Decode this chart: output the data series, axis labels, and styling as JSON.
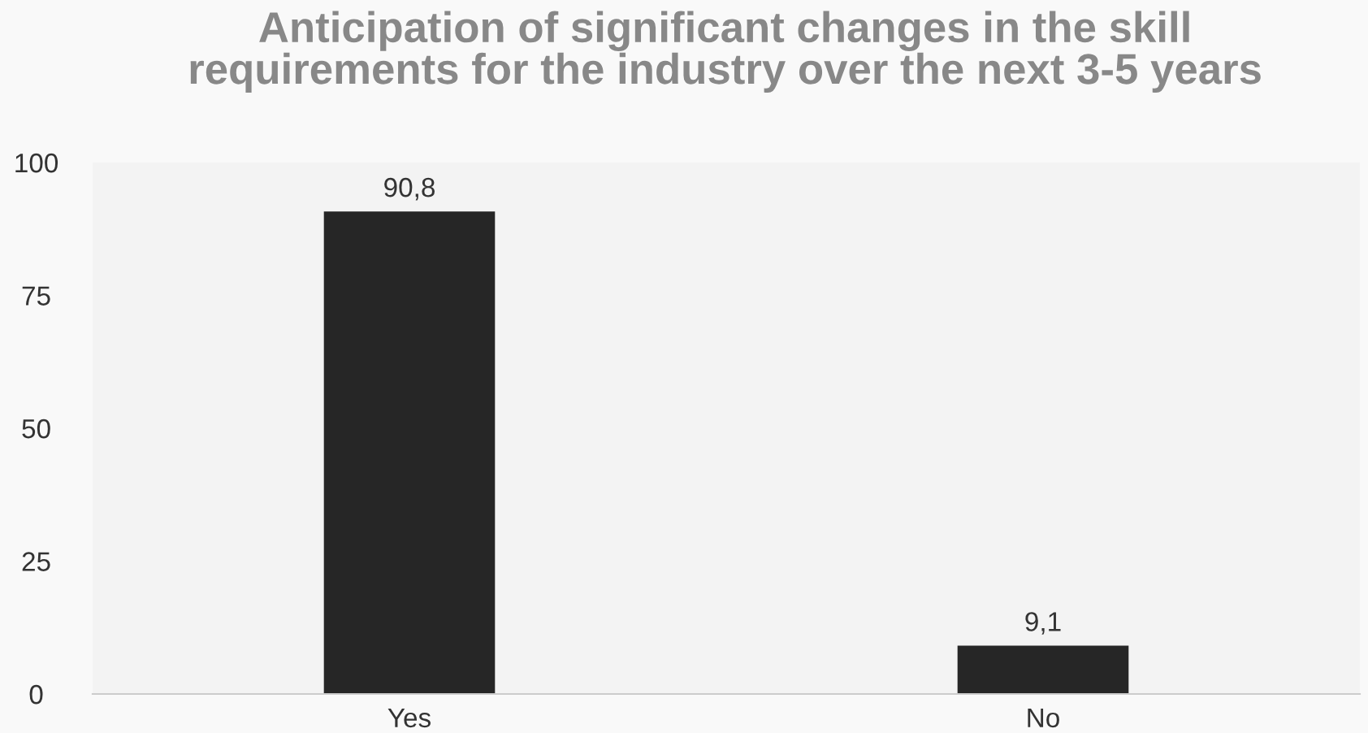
{
  "chart_data": {
    "type": "bar",
    "title": "Anticipation of significant changes in the skill\nrequirements for the industry over the next 3-5 years",
    "categories": [
      "Yes",
      "No"
    ],
    "values": [
      90.8,
      9.1
    ],
    "value_labels": [
      "90,8",
      "9,1"
    ],
    "color": "#262626",
    "ylim": [
      0,
      100
    ],
    "yticks": [
      0,
      25,
      50,
      75,
      100
    ],
    "grid": false
  }
}
